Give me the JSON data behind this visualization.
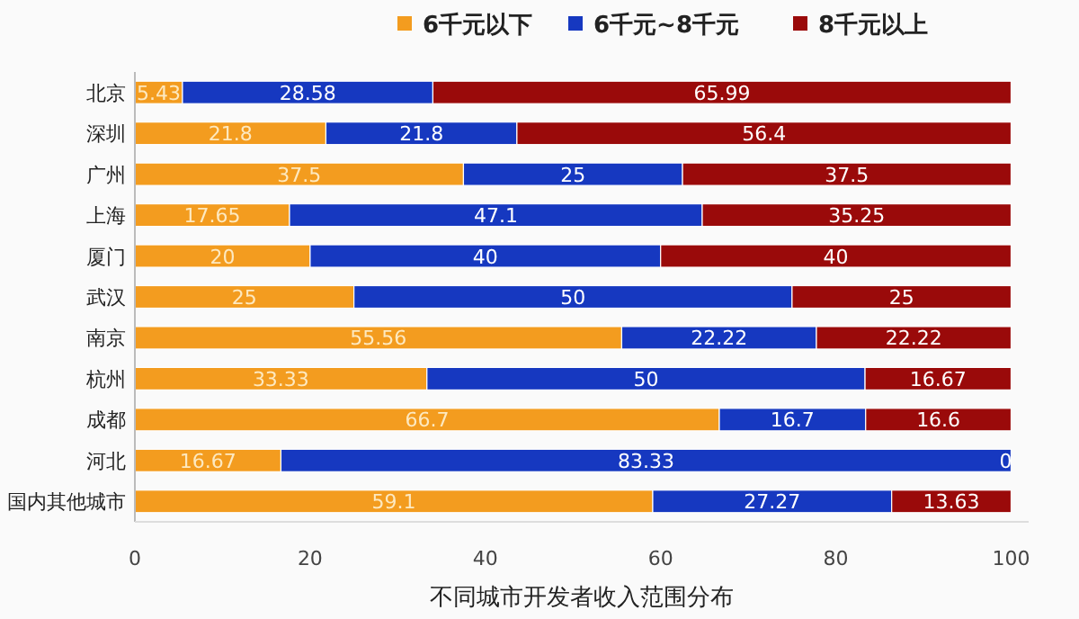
{
  "chart_data": {
    "type": "bar",
    "orientation": "horizontal",
    "stacked": true,
    "data_labels": true,
    "legend": "top",
    "grid": false,
    "xlabel": "不同城市开发者收入范围分布",
    "categories": [
      "北京",
      "深圳",
      "广州",
      "上海",
      "厦门",
      "武汉",
      "南京",
      "杭州",
      "成都",
      "河北",
      "国内其他城市"
    ],
    "xlim": [
      0,
      102
    ],
    "xticks": [
      0,
      20,
      40,
      60,
      80,
      100
    ],
    "series": [
      {
        "name": "6千元以下",
        "color": "#f39c1f",
        "values": [
          5.43,
          21.8,
          37.5,
          17.65,
          20,
          25,
          55.56,
          33.33,
          66.7,
          16.67,
          59.1
        ]
      },
      {
        "name": "6千元~8千元",
        "color": "#1638c0",
        "values": [
          28.58,
          21.8,
          25,
          47.1,
          40,
          50,
          22.22,
          50,
          16.7,
          83.33,
          27.27
        ]
      },
      {
        "name": "8千元以上",
        "color": "#9a0a0a",
        "values": [
          65.99,
          56.4,
          37.5,
          35.25,
          40,
          25,
          22.22,
          16.67,
          16.6,
          0,
          13.63
        ]
      }
    ]
  }
}
